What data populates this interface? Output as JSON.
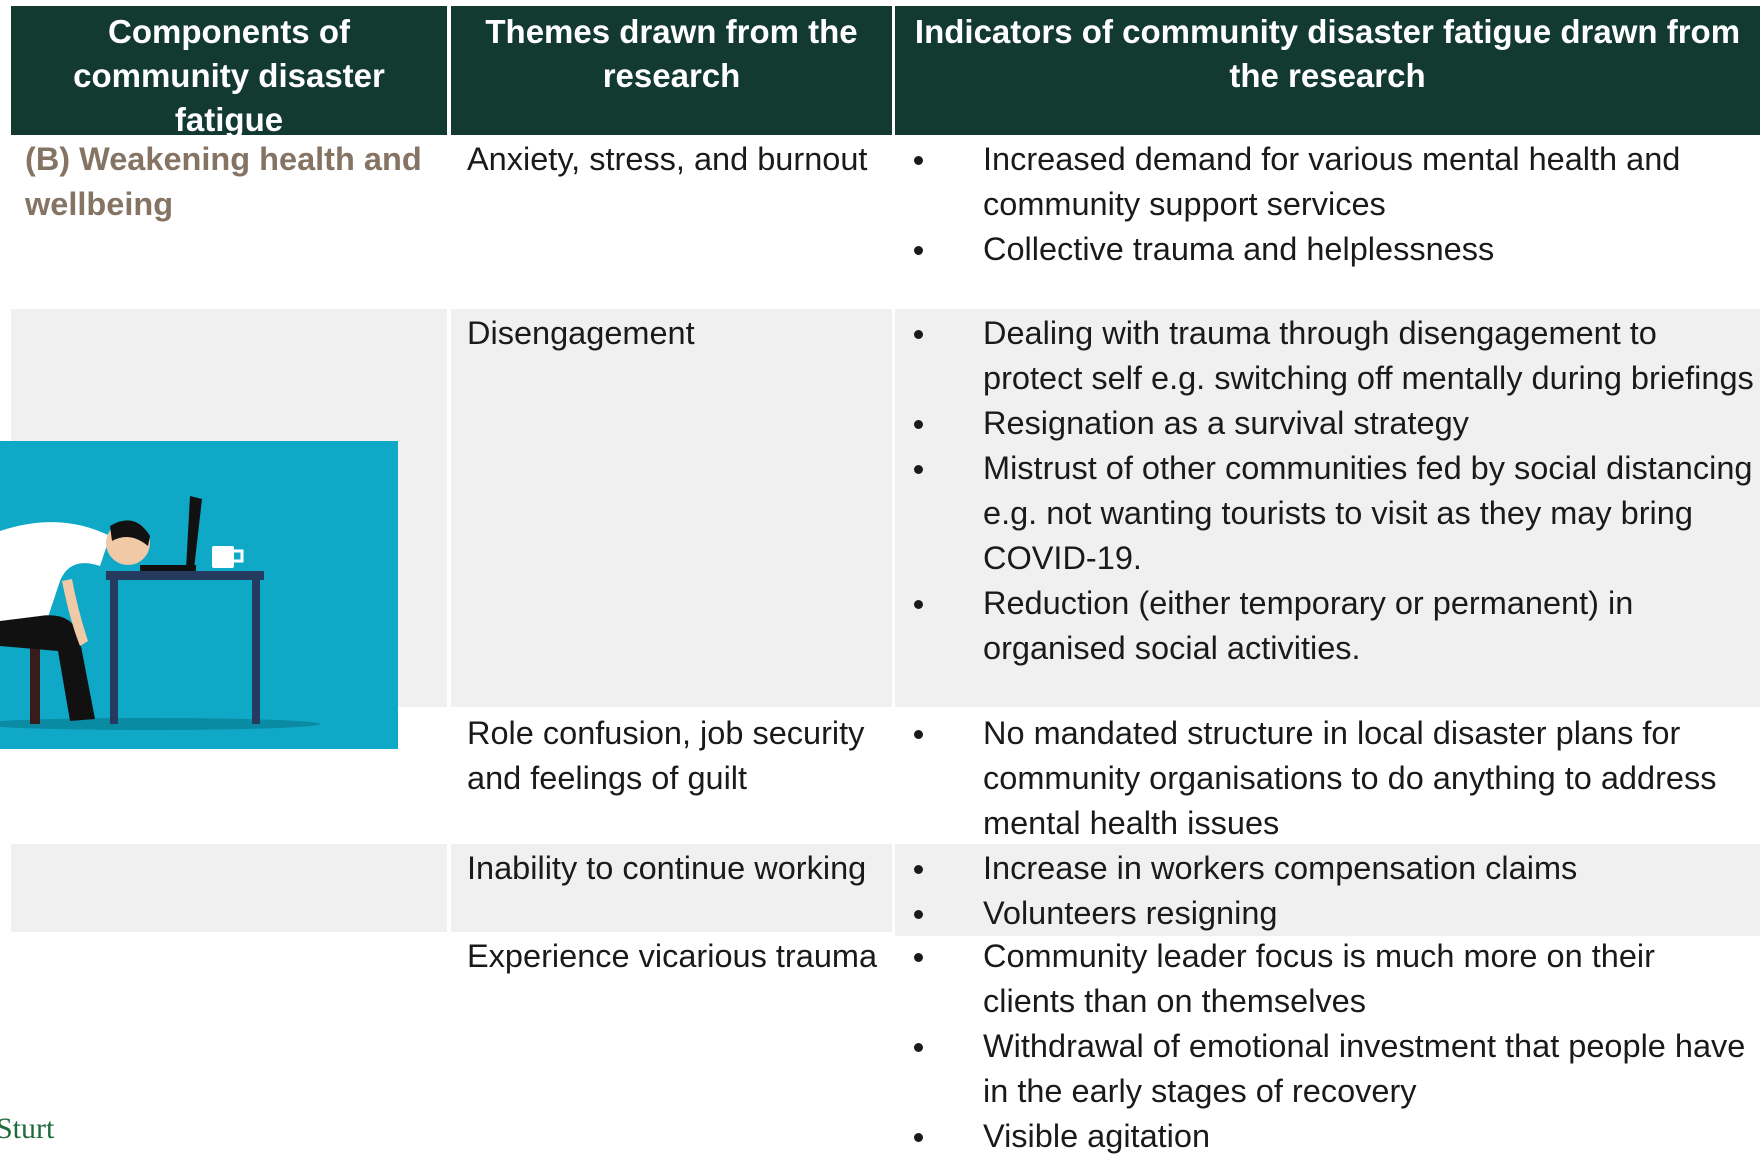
{
  "table": {
    "header": [
      "Components of community disaster fatigue",
      "Themes drawn from the research",
      "Indicators of community disaster fatigue drawn from the research"
    ],
    "rows": [
      {
        "component": "(B) Weakening health and wellbeing",
        "theme": "Anxiety, stress, and burnout",
        "indicators": [
          "Increased demand for various mental health and community support services",
          "Collective trauma and helplessness"
        ]
      },
      {
        "theme": "Disengagement",
        "indicators": [
          "Dealing with trauma through disengagement to protect self e.g. switching off mentally during briefings",
          "Resignation as a survival strategy",
          "Mistrust of other communities fed by social distancing e.g. not wanting tourists to visit as they may bring COVID-19.",
          "Reduction (either temporary or permanent) in organised social activities."
        ]
      },
      {
        "theme": "Role confusion, job security and feelings of guilt",
        "indicators": [
          "No mandated structure in local disaster plans for community organisations to do anything to address mental health issues"
        ]
      },
      {
        "theme": "Inability to continue working",
        "indicators": [
          "Increase in workers compensation claims",
          "Volunteers resigning"
        ]
      },
      {
        "theme": "Experience vicarious trauma",
        "indicators": [
          "Community leader focus is much more on their clients than on themselves",
          "Withdrawal of emotional investment that people have in the early stages of recovery",
          "Visible agitation"
        ]
      }
    ]
  },
  "logo": "Sturt"
}
